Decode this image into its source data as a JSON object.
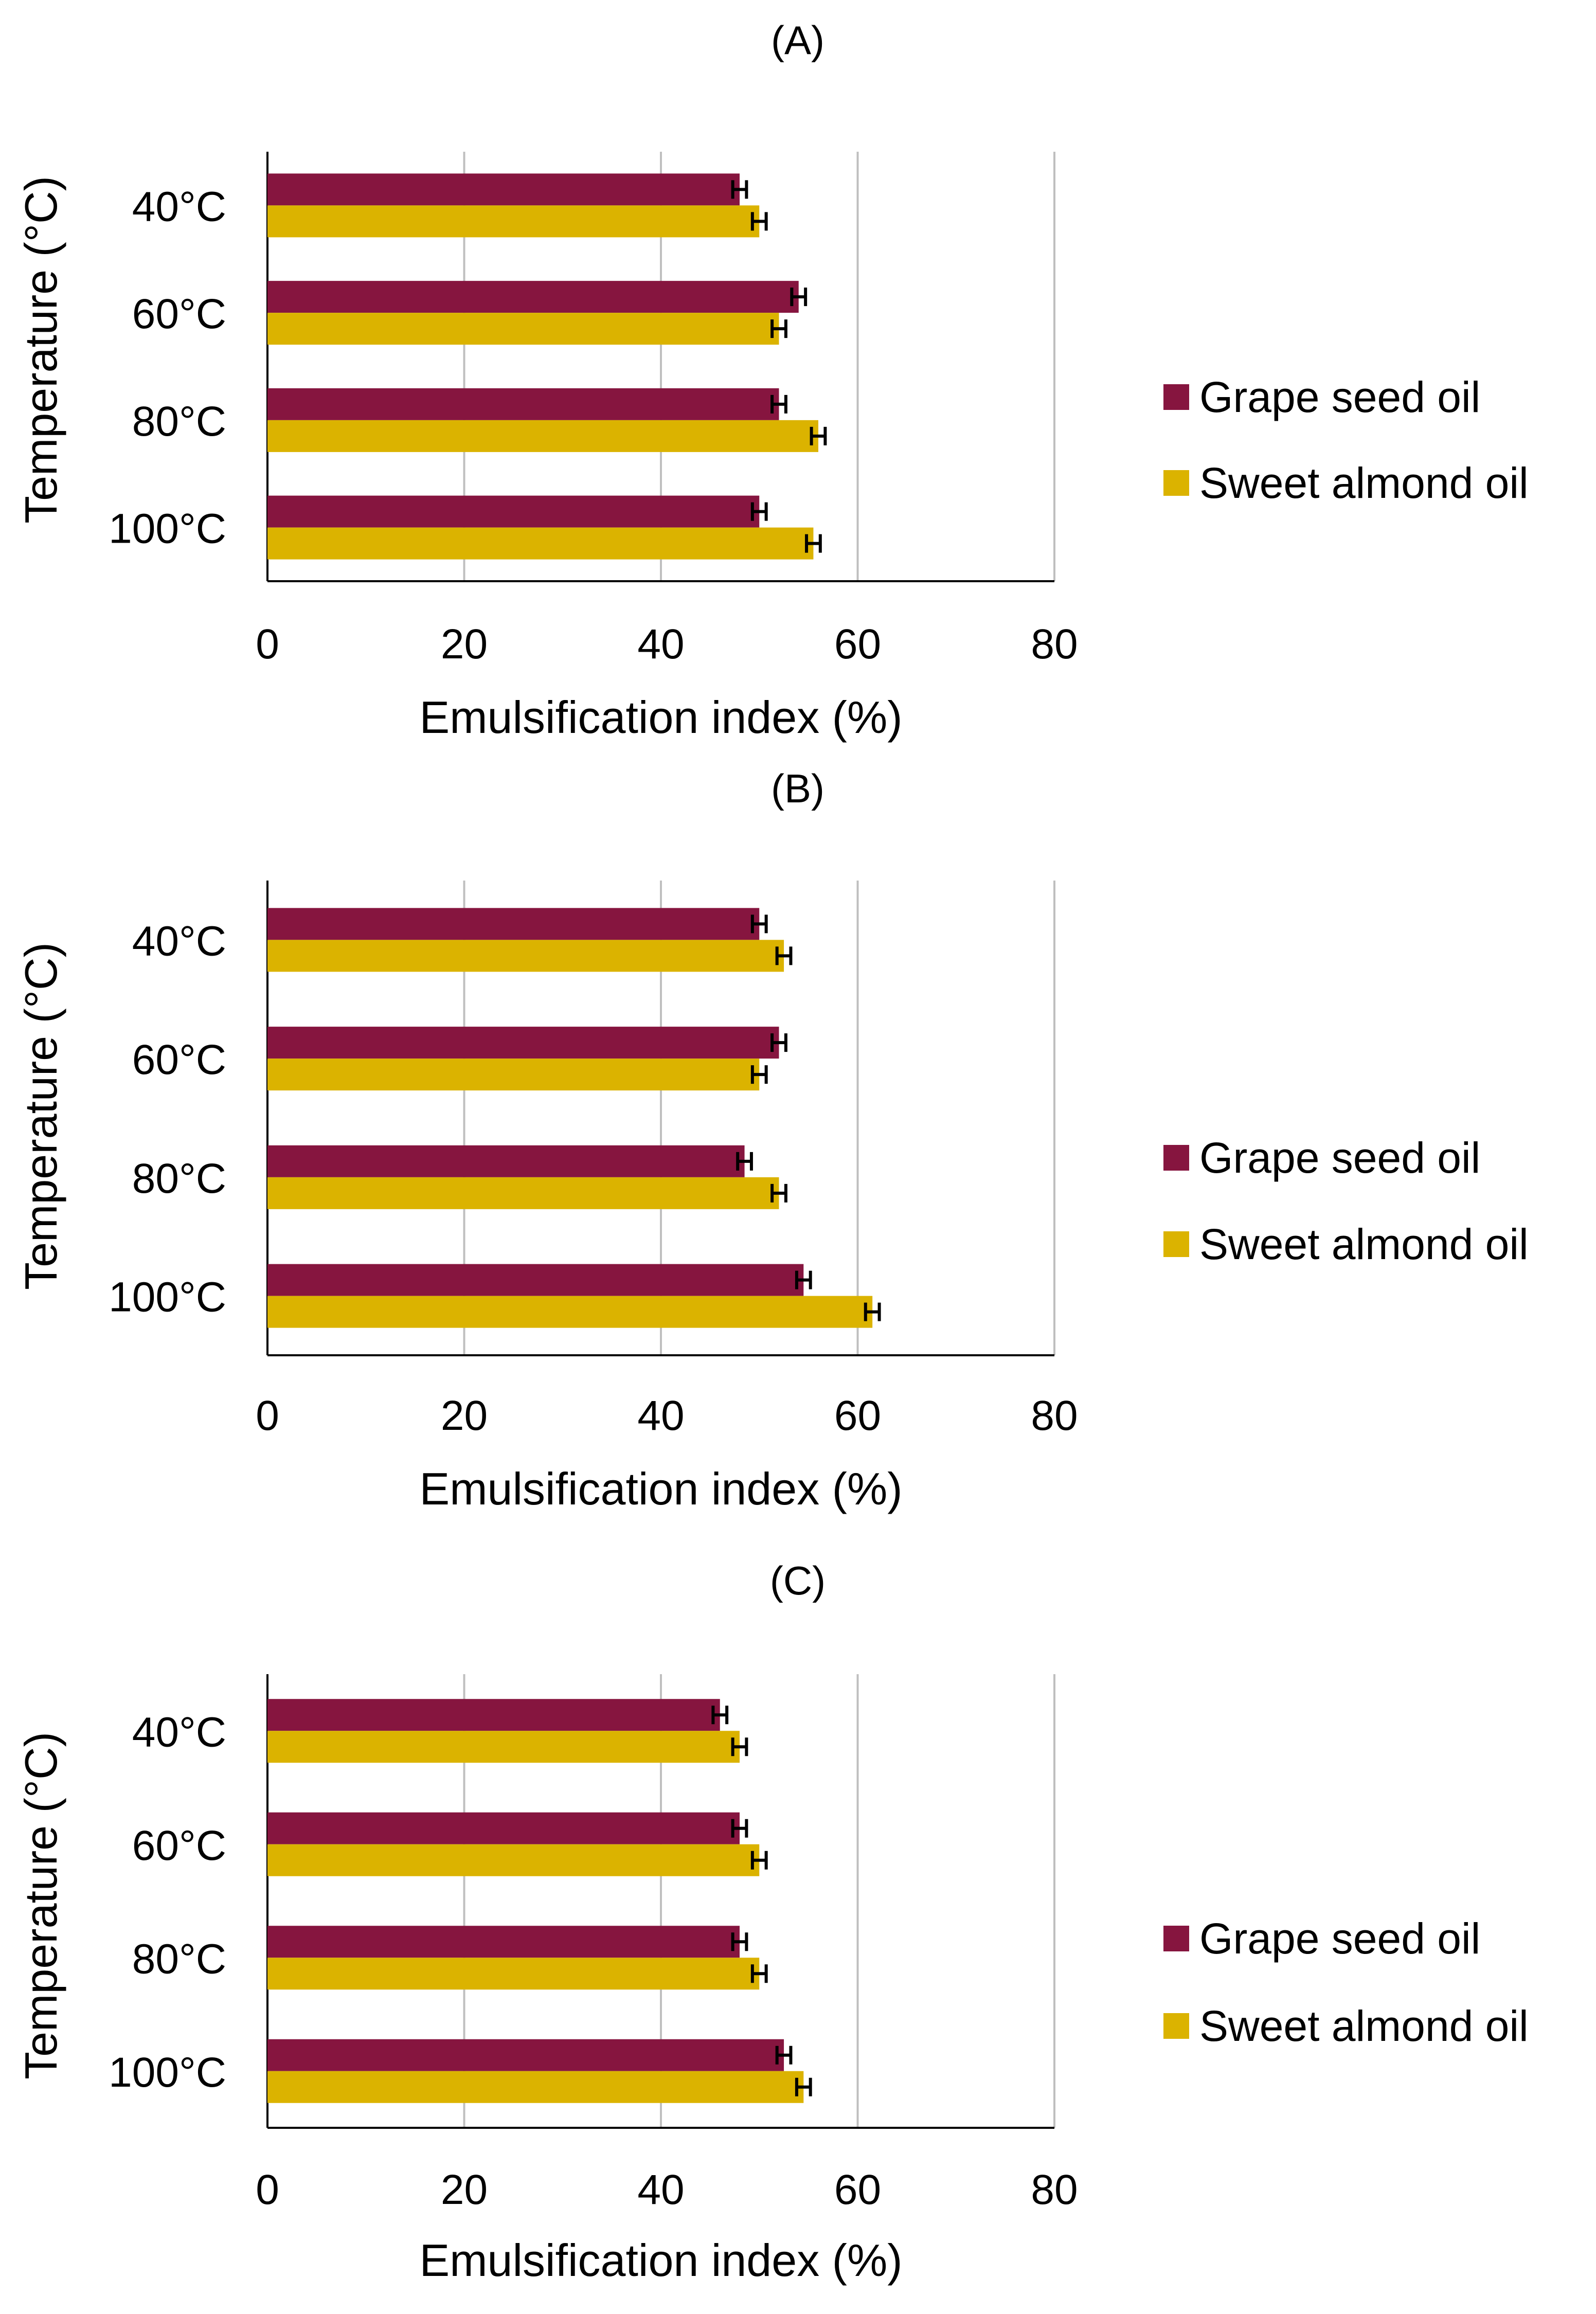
{
  "figure": {
    "colors": {
      "grape": "#86153f",
      "almond": "#dbb300",
      "grid": "#bfbfbf",
      "axis": "#000000"
    }
  },
  "chart_data": [
    {
      "type": "bar",
      "orientation": "horizontal",
      "title": "(A)",
      "categories": [
        "40°C",
        "60°C",
        "80°C",
        "100°C"
      ],
      "series": [
        {
          "name": "Grape seed oil",
          "values": [
            48,
            54,
            52,
            50
          ],
          "errors": [
            0.7,
            0.7,
            0.7,
            0.7
          ]
        },
        {
          "name": "Sweet almond oil",
          "values": [
            50,
            52,
            56,
            55.5
          ],
          "errors": [
            0.7,
            0.7,
            0.7,
            0.7
          ]
        }
      ],
      "xlabel": "Emulsification index (%)",
      "ylabel": "Temperature (°C)",
      "xlim": [
        0,
        80
      ],
      "xticks": [
        "0",
        "20",
        "40",
        "60",
        "80"
      ],
      "grid": "vertical",
      "legend": "right"
    },
    {
      "type": "bar",
      "orientation": "horizontal",
      "title": "(B)",
      "categories": [
        "40°C",
        "60°C",
        "80°C",
        "100°C"
      ],
      "series": [
        {
          "name": "Grape seed oil",
          "values": [
            50,
            52,
            48.5,
            54.5
          ],
          "errors": [
            0.7,
            0.7,
            0.7,
            0.7
          ]
        },
        {
          "name": "Sweet almond oil",
          "values": [
            52.5,
            50,
            52,
            61.5
          ],
          "errors": [
            0.7,
            0.7,
            0.7,
            0.7
          ]
        }
      ],
      "xlabel": "Emulsification index (%)",
      "ylabel": "Temperature (°C)",
      "xlim": [
        0,
        80
      ],
      "xticks": [
        "0",
        "20",
        "40",
        "60",
        "80"
      ],
      "grid": "vertical",
      "legend": "right"
    },
    {
      "type": "bar",
      "orientation": "horizontal",
      "title": "(C)",
      "categories": [
        "40°C",
        "60°C",
        "80°C",
        "100°C"
      ],
      "series": [
        {
          "name": "Grape seed oil",
          "values": [
            46,
            48,
            48,
            52.5
          ],
          "errors": [
            0.7,
            0.7,
            0.7,
            0.7
          ]
        },
        {
          "name": "Sweet almond oil",
          "values": [
            48,
            50,
            50,
            54.5
          ],
          "errors": [
            0.7,
            0.7,
            0.7,
            0.7
          ]
        }
      ],
      "xlabel": "Emulsification index (%)",
      "ylabel": "Temperature (°C)",
      "xlim": [
        0,
        80
      ],
      "xticks": [
        "0",
        "20",
        "40",
        "60",
        "80"
      ],
      "grid": "vertical",
      "legend": "right"
    }
  ]
}
